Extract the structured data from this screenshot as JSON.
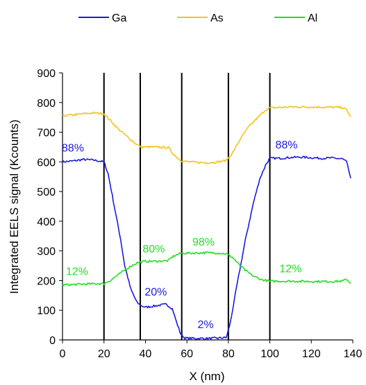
{
  "chart_data": {
    "type": "line",
    "title": "",
    "xlabel": "X (nm)",
    "ylabel": "Integrated EELS signal (Kcounts)",
    "xlim": [
      0,
      140
    ],
    "ylim": [
      0,
      900
    ],
    "xticks": [
      0,
      20,
      40,
      60,
      80,
      100,
      120,
      140
    ],
    "yticks": [
      0,
      100,
      200,
      300,
      400,
      500,
      600,
      700,
      800,
      900
    ],
    "grid": false,
    "legend": "top",
    "vertical_lines": [
      20,
      37.5,
      57.5,
      80,
      100
    ],
    "series": [
      {
        "name": "Ga",
        "color": "#1a1adc",
        "points": [
          [
            0,
            600
          ],
          [
            5,
            603
          ],
          [
            10,
            608
          ],
          [
            15,
            606
          ],
          [
            20,
            600
          ],
          [
            22,
            560
          ],
          [
            25,
            450
          ],
          [
            28,
            340
          ],
          [
            30,
            250
          ],
          [
            33,
            170
          ],
          [
            36,
            125
          ],
          [
            38,
            115
          ],
          [
            40,
            110
          ],
          [
            45,
            115
          ],
          [
            50,
            120
          ],
          [
            53,
            105
          ],
          [
            55,
            60
          ],
          [
            57,
            20
          ],
          [
            59,
            6
          ],
          [
            65,
            5
          ],
          [
            70,
            5
          ],
          [
            75,
            6
          ],
          [
            79,
            8
          ],
          [
            81,
            60
          ],
          [
            84,
            180
          ],
          [
            88,
            330
          ],
          [
            92,
            460
          ],
          [
            95,
            540
          ],
          [
            98,
            590
          ],
          [
            100,
            612
          ],
          [
            105,
            612
          ],
          [
            110,
            615
          ],
          [
            115,
            616
          ],
          [
            120,
            614
          ],
          [
            125,
            612
          ],
          [
            130,
            613
          ],
          [
            135,
            610
          ],
          [
            137,
            600
          ],
          [
            139,
            545
          ]
        ]
      },
      {
        "name": "As",
        "color": "#f2c318",
        "points": [
          [
            0,
            755
          ],
          [
            5,
            758
          ],
          [
            10,
            762
          ],
          [
            15,
            765
          ],
          [
            20,
            762
          ],
          [
            23,
            740
          ],
          [
            27,
            710
          ],
          [
            32,
            680
          ],
          [
            36,
            658
          ],
          [
            38,
            650
          ],
          [
            45,
            650
          ],
          [
            51,
            648
          ],
          [
            53,
            630
          ],
          [
            56,
            610
          ],
          [
            58,
            602
          ],
          [
            65,
            598
          ],
          [
            70,
            597
          ],
          [
            75,
            600
          ],
          [
            79,
            605
          ],
          [
            82,
            630
          ],
          [
            86,
            680
          ],
          [
            90,
            720
          ],
          [
            95,
            755
          ],
          [
            98,
            775
          ],
          [
            100,
            782
          ],
          [
            110,
            785
          ],
          [
            120,
            785
          ],
          [
            130,
            784
          ],
          [
            135,
            783
          ],
          [
            137,
            775
          ],
          [
            139,
            752
          ]
        ]
      },
      {
        "name": "Al",
        "color": "#22dd22",
        "points": [
          [
            0,
            185
          ],
          [
            10,
            188
          ],
          [
            20,
            190
          ],
          [
            23,
            200
          ],
          [
            27,
            220
          ],
          [
            32,
            245
          ],
          [
            36,
            260
          ],
          [
            40,
            265
          ],
          [
            45,
            265
          ],
          [
            51,
            267
          ],
          [
            53,
            280
          ],
          [
            56,
            290
          ],
          [
            58,
            292
          ],
          [
            65,
            293
          ],
          [
            70,
            294
          ],
          [
            75,
            293
          ],
          [
            79,
            290
          ],
          [
            82,
            278
          ],
          [
            85,
            255
          ],
          [
            88,
            235
          ],
          [
            92,
            215
          ],
          [
            96,
            203
          ],
          [
            100,
            198
          ],
          [
            110,
            198
          ],
          [
            120,
            197
          ],
          [
            130,
            197
          ],
          [
            135,
            198
          ],
          [
            137,
            205
          ],
          [
            139,
            190
          ]
        ]
      }
    ],
    "annotations": [
      {
        "text": "88%",
        "series": "Ga",
        "x": 5,
        "y": 635
      },
      {
        "text": "88%",
        "series": "Ga",
        "x": 108,
        "y": 645
      },
      {
        "text": "20%",
        "series": "Ga",
        "x": 45,
        "y": 150
      },
      {
        "text": "2%",
        "series": "Ga",
        "x": 69,
        "y": 40
      },
      {
        "text": "80%",
        "series": "Al",
        "x": 44,
        "y": 295
      },
      {
        "text": "98%",
        "series": "Al",
        "x": 68,
        "y": 318
      },
      {
        "text": "12%",
        "series": "Al",
        "x": 7,
        "y": 218
      },
      {
        "text": "12%",
        "series": "Al",
        "x": 110,
        "y": 228
      }
    ]
  }
}
